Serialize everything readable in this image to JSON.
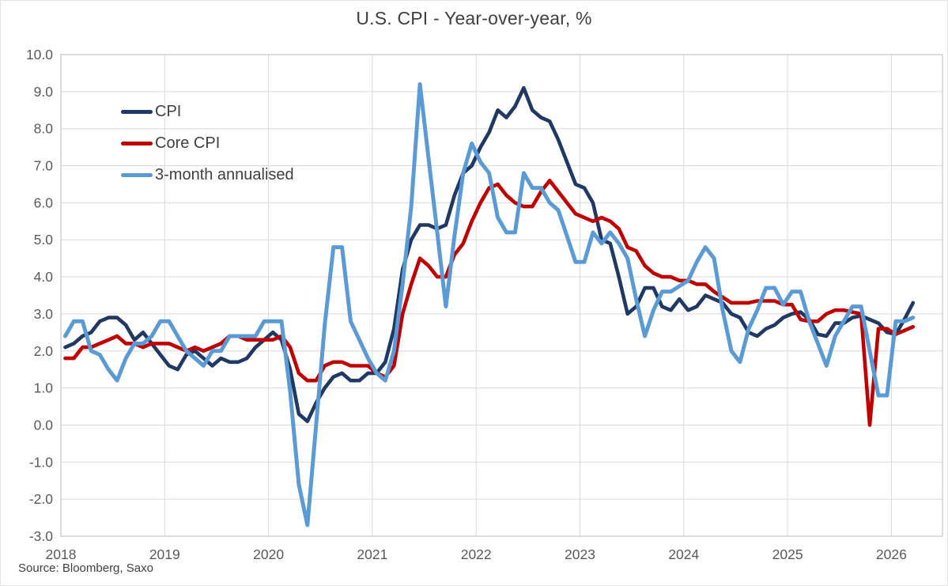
{
  "chart": {
    "title": "U.S. CPI - Year-over-year, %",
    "source": "Source: Bloomberg, Saxo"
  },
  "chart_data": {
    "type": "line",
    "title": "U.S. CPI - Year-over-year, %",
    "xlabel": "",
    "ylabel": "",
    "x_start": "2018-01",
    "x_end": "2026-03",
    "frequency": "monthly",
    "x_tick_labels": [
      "2018",
      "2019",
      "2020",
      "2021",
      "2022",
      "2023",
      "2024",
      "2025",
      "2026"
    ],
    "y_tick_labels": [
      "10.0",
      "9.0",
      "8.0",
      "7.0",
      "6.0",
      "5.0",
      "4.0",
      "3.0",
      "2.0",
      "1.0",
      "0.0",
      "-1.0",
      "-2.0",
      "-3.0"
    ],
    "ylim": [
      -3,
      10
    ],
    "grid": true,
    "legend_position": "inside-top-left",
    "axis_text_color": "#595959",
    "gridline_color": "#d9d9d9",
    "border_color": "#c6c6c6",
    "series": [
      {
        "name": "CPI",
        "color": "#1f3864",
        "values": [
          2.1,
          2.2,
          2.4,
          2.5,
          2.8,
          2.9,
          2.9,
          2.7,
          2.3,
          2.5,
          2.2,
          1.9,
          1.6,
          1.5,
          1.9,
          2.0,
          1.8,
          1.6,
          1.8,
          1.7,
          1.7,
          1.8,
          2.1,
          2.3,
          2.5,
          2.3,
          1.5,
          0.3,
          0.1,
          0.6,
          1.0,
          1.3,
          1.4,
          1.2,
          1.2,
          1.4,
          1.4,
          1.7,
          2.6,
          4.2,
          5.0,
          5.4,
          5.4,
          5.3,
          5.4,
          6.2,
          6.8,
          7.0,
          7.5,
          7.9,
          8.5,
          8.3,
          8.6,
          9.1,
          8.5,
          8.3,
          8.2,
          7.7,
          7.1,
          6.5,
          6.4,
          6.0,
          5.0,
          4.9,
          4.0,
          3.0,
          3.2,
          3.7,
          3.7,
          3.2,
          3.1,
          3.4,
          3.1,
          3.2,
          3.5,
          3.4,
          3.3,
          3.0,
          2.9,
          2.5,
          2.4,
          2.6,
          2.7,
          2.9,
          3.0,
          3.05,
          2.85,
          2.45,
          2.4,
          2.75,
          2.75,
          2.9,
          2.95,
          2.85,
          2.75,
          2.5,
          2.45,
          2.85,
          3.3
        ]
      },
      {
        "name": "Core CPI",
        "color": "#c00000",
        "values": [
          1.8,
          1.8,
          2.1,
          2.1,
          2.2,
          2.3,
          2.4,
          2.2,
          2.2,
          2.1,
          2.2,
          2.2,
          2.2,
          2.1,
          2.0,
          2.1,
          2.0,
          2.1,
          2.2,
          2.4,
          2.4,
          2.3,
          2.3,
          2.3,
          2.3,
          2.4,
          2.1,
          1.4,
          1.2,
          1.2,
          1.6,
          1.7,
          1.7,
          1.6,
          1.6,
          1.6,
          1.4,
          1.3,
          1.6,
          3.0,
          3.8,
          4.5,
          4.3,
          4.0,
          4.0,
          4.6,
          4.9,
          5.5,
          6.0,
          6.4,
          6.5,
          6.2,
          6.0,
          5.9,
          5.9,
          6.3,
          6.6,
          6.3,
          6.0,
          5.7,
          5.6,
          5.5,
          5.6,
          5.5,
          5.3,
          4.8,
          4.7,
          4.3,
          4.1,
          4.0,
          4.0,
          3.9,
          3.9,
          3.8,
          3.8,
          3.6,
          3.45,
          3.3,
          3.3,
          3.3,
          3.35,
          3.35,
          3.35,
          3.25,
          3.25,
          2.85,
          2.8,
          2.8,
          3.0,
          3.1,
          3.1,
          3.05,
          3.0,
          0.0,
          2.6,
          2.6,
          2.45,
          2.55,
          2.65
        ]
      },
      {
        "name": "3-month annualised",
        "color": "#5b9bd5",
        "values": [
          2.4,
          2.8,
          2.8,
          2.0,
          1.9,
          1.5,
          1.2,
          1.8,
          2.2,
          2.2,
          2.4,
          2.8,
          2.8,
          2.4,
          2.0,
          1.8,
          1.6,
          2.0,
          2.0,
          2.4,
          2.4,
          2.4,
          2.4,
          2.8,
          2.8,
          2.8,
          0.9,
          -1.6,
          -2.7,
          0.0,
          2.7,
          4.8,
          4.8,
          2.8,
          2.3,
          1.8,
          1.4,
          1.2,
          2.0,
          3.8,
          5.9,
          9.2,
          7.2,
          5.2,
          3.2,
          5.1,
          6.8,
          7.6,
          7.1,
          6.8,
          5.6,
          5.2,
          5.2,
          6.8,
          6.4,
          6.4,
          6.0,
          5.8,
          5.1,
          4.4,
          4.4,
          5.2,
          4.9,
          5.2,
          4.9,
          4.5,
          3.4,
          2.4,
          3.1,
          3.6,
          3.6,
          3.75,
          3.9,
          4.4,
          4.8,
          4.5,
          3.1,
          2.0,
          1.7,
          2.6,
          3.1,
          3.7,
          3.7,
          3.25,
          3.6,
          3.6,
          2.8,
          2.2,
          1.6,
          2.4,
          2.8,
          3.2,
          3.2,
          2.0,
          0.8,
          0.8,
          2.8,
          2.8,
          2.9
        ]
      }
    ],
    "source": "Source: Bloomberg, Saxo"
  }
}
